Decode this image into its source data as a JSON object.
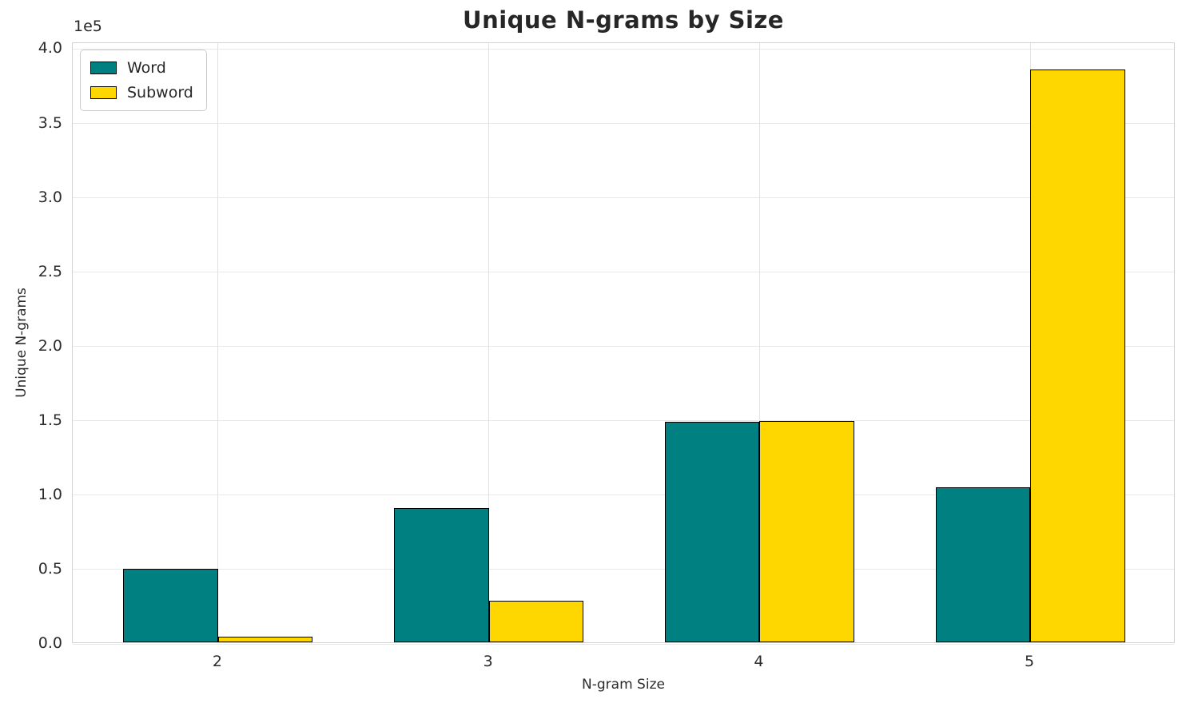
{
  "chart": {
    "title": "Unique N-grams by Size",
    "xlabel": "N-gram Size",
    "ylabel": "Unique N-grams",
    "y_offset_text": "1e5"
  },
  "chart_data": {
    "type": "bar",
    "title": "Unique N-grams by Size",
    "xlabel": "N-gram Size",
    "ylabel": "Unique N-grams",
    "categories": [
      "2",
      "3",
      "4",
      "5"
    ],
    "series": [
      {
        "name": "Word",
        "color": "#008080",
        "values": [
          49500,
          90500,
          148500,
          104000
        ]
      },
      {
        "name": "Subword",
        "color": "#FFD700",
        "values": [
          3600,
          27800,
          149000,
          385000
        ]
      }
    ],
    "bar_width": 0.35,
    "bar_edge_color": "#000000",
    "ylim": [
      0,
      404000
    ],
    "yticks": [
      0,
      50000,
      100000,
      150000,
      200000,
      250000,
      300000,
      350000,
      400000
    ],
    "ytick_labels": [
      "0.0",
      "0.5",
      "1.0",
      "1.5",
      "2.0",
      "2.5",
      "3.0",
      "3.5",
      "4.0"
    ],
    "y_offset_text": "1e5",
    "grid": true,
    "grid_color": "#e8e8e8",
    "legend_position": "upper left"
  }
}
